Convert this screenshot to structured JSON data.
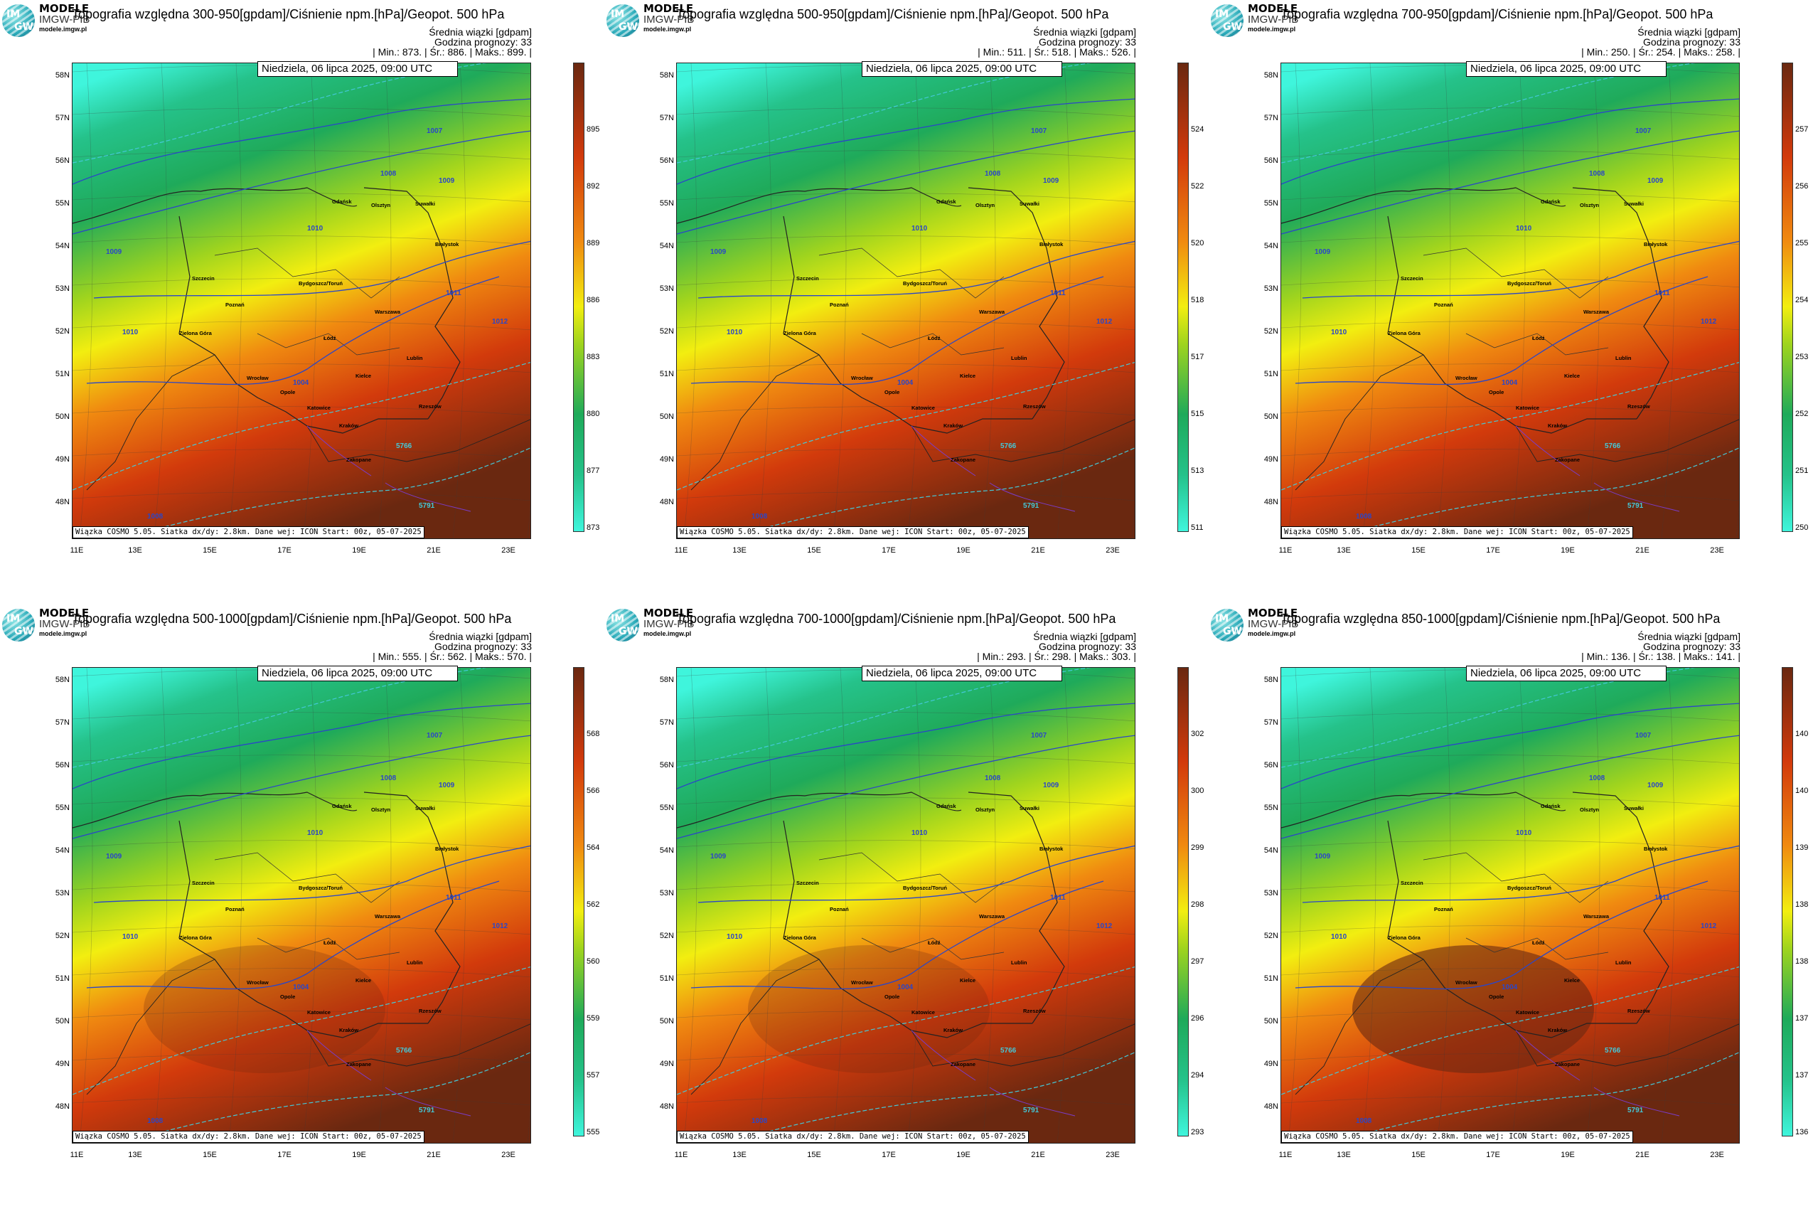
{
  "logo": {
    "im": "IM",
    "gw": "GW",
    "brand_top": "MODELE",
    "brand_mid": "IMGW-PIB",
    "brand_url": "modele.imgw.pl"
  },
  "common": {
    "subtitle": "Średnia wiązki [gdpam]",
    "forecast_hour": "Godzina prognozy: 33",
    "date": "Niedziela, 06 lipca 2025, 09:00 UTC",
    "footer": "Wiązka COSMO 5.05. Siatka dx/dy: 2.8km. Dane wej: ICON Start: 00z, 05-07-2025",
    "lat_labels": [
      "58N",
      "57N",
      "56N",
      "55N",
      "54N",
      "53N",
      "52N",
      "51N",
      "50N",
      "49N",
      "48N"
    ],
    "lon_labels": [
      "11E",
      "13E",
      "15E",
      "17E",
      "19E",
      "21E",
      "23E"
    ],
    "cities": [
      "Gdańsk",
      "Olsztyn",
      "Suwałki",
      "Białystok",
      "Szczecin",
      "Bydgoszcz/Toruń",
      "Poznań",
      "Warszawa",
      "Zielona Góra",
      "Łódź",
      "Lublin",
      "Wrocław",
      "Kielce",
      "Opole",
      "Katowice",
      "Kraków",
      "Rzeszów",
      "Zakopane"
    ],
    "isobar_labels": [
      "1007",
      "1008",
      "1009",
      "1010",
      "1011",
      "1012",
      "1004",
      "5766",
      "5791",
      "5742"
    ]
  },
  "panels": [
    {
      "title": "Topografia względna 300-950[gpdam]/Ciśnienie npm.[hPa]/Geopot. 500 hPa",
      "stats": "| Min.:    873. | Śr.:    886. | Maks.:    899. |",
      "colorbar_ticks": [
        "895",
        "892",
        "889",
        "886",
        "883",
        "880",
        "877",
        "873"
      ]
    },
    {
      "title": "Topografia względna 500-950[gpdam]/Ciśnienie npm.[hPa]/Geopot. 500 hPa",
      "stats": "| Min.:    511. | Śr.:    518. | Maks.:    526. |",
      "colorbar_ticks": [
        "524",
        "522",
        "520",
        "518",
        "517",
        "515",
        "513",
        "511"
      ]
    },
    {
      "title": "Topografia względna 700-950[gpdam]/Ciśnienie npm.[hPa]/Geopot. 500 hPa",
      "stats": "| Min.:    250. | Śr.:    254. | Maks.:    258. |",
      "colorbar_ticks": [
        "257",
        "256",
        "255",
        "254",
        "253",
        "252",
        "251",
        "250"
      ]
    },
    {
      "title": "Topografia względna 500-1000[gpdam]/Ciśnienie npm.[hPa]/Geopot. 500 hPa",
      "stats": "| Min.:    555. | Śr.:    562. | Maks.:    570. |",
      "colorbar_ticks": [
        "568",
        "566",
        "564",
        "562",
        "560",
        "559",
        "557",
        "555"
      ]
    },
    {
      "title": "Topografia względna 700-1000[gpdam]/Ciśnienie npm.[hPa]/Geopot. 500 hPa",
      "stats": "| Min.:    293. | Śr.:    298. | Maks.:    303. |",
      "colorbar_ticks": [
        "302",
        "300",
        "299",
        "298",
        "297",
        "296",
        "294",
        "293"
      ]
    },
    {
      "title": "Topografia względna 850-1000[gpdam]/Ciśnienie npm.[hPa]/Geopot. 500 hPa",
      "stats": "| Min.:    136. | Śr.:    138. | Maks.:    141. |",
      "colorbar_ticks": [
        "140",
        "140",
        "139",
        "138",
        "138",
        "137",
        "137",
        "136"
      ]
    }
  ],
  "colors": {
    "low": "#3ff5dc",
    "green": "#1faa5a",
    "yellow": "#f2ee10",
    "orange": "#f08a10",
    "red": "#d23a0c",
    "dark": "#6a2810",
    "isobar": "#2a46c8",
    "geopot": "#44c8d8"
  }
}
